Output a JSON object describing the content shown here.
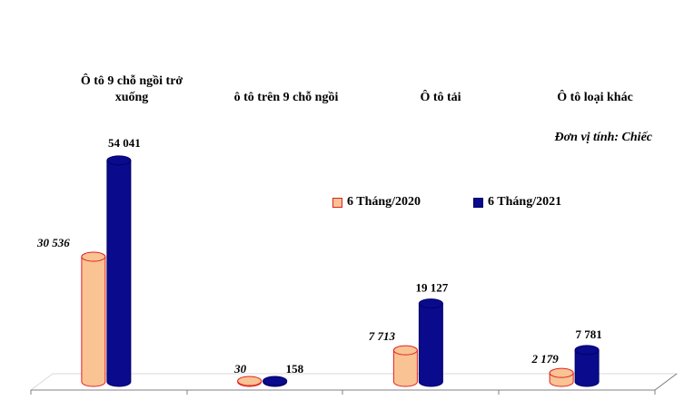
{
  "chart_data": {
    "type": "bar",
    "categories": [
      "Ô tô 9 chỗ ngồi trở xuống",
      "ô tô trên 9 chỗ ngồi",
      "Ô tô tải",
      "Ô tô loại khác"
    ],
    "series": [
      {
        "name": "6 Tháng/2020",
        "values": [
          30536,
          30,
          7713,
          2179
        ],
        "labels": [
          "30 536",
          "30",
          "7 713",
          "2 179"
        ],
        "color": "#F9C394",
        "edge": "#E02020"
      },
      {
        "name": "6 Tháng/2021",
        "values": [
          54041,
          158,
          19127,
          7781
        ],
        "labels": [
          "54 041",
          "158",
          "19 127",
          "7 781"
        ],
        "color": "#0A0A8C",
        "edge": "#00006A"
      }
    ],
    "unit_note": "Đơn vị tính: Chiếc",
    "ylim": [
      0,
      56000
    ],
    "legend_position": "middle",
    "grid": false
  }
}
